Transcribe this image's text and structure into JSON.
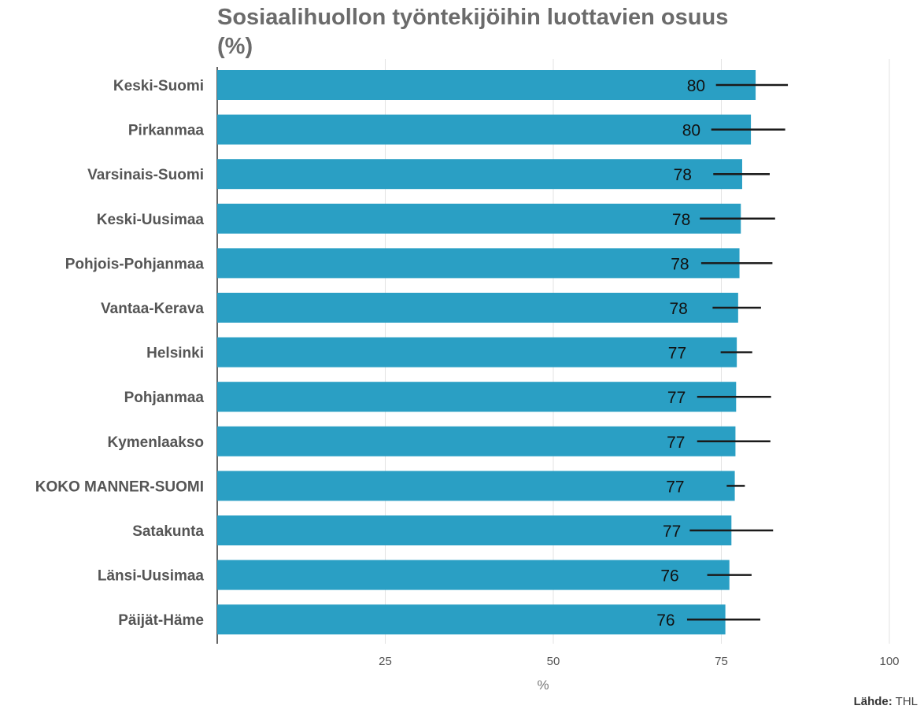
{
  "chart_data": {
    "type": "bar",
    "orientation": "horizontal",
    "title": "Sosiaalihuollon työntekijöihin luottavien osuus (%)",
    "xlabel": "%",
    "ylabel": "",
    "xlim": [
      0,
      100
    ],
    "xticks": [
      25,
      50,
      75,
      100
    ],
    "grid": true,
    "bar_color": "#2a9fc4",
    "error_color": "#1a1a1a",
    "categories": [
      "Keski-Suomi",
      "Pirkanmaa",
      "Varsinais-Suomi",
      "Keski-Uusimaa",
      "Pohjois-Pohjanmaa",
      "Vantaa-Kerava",
      "Helsinki",
      "Pohjanmaa",
      "Kymenlaakso",
      "KOKO MANNER-SUOMI",
      "Satakunta",
      "Länsi-Uusimaa",
      "Päijät-Häme"
    ],
    "values": [
      80,
      80,
      78,
      78,
      78,
      78,
      77,
      77,
      77,
      77,
      77,
      76,
      76
    ],
    "data_labels": [
      "80",
      "80",
      "78",
      "78",
      "78",
      "78",
      "77",
      "77",
      "77",
      "77",
      "77",
      "76",
      "76"
    ],
    "precise_values": [
      80.1,
      79.4,
      78.1,
      77.9,
      77.7,
      77.5,
      77.3,
      77.2,
      77.1,
      77.0,
      76.5,
      76.2,
      75.6
    ],
    "error_low": [
      74.2,
      73.5,
      73.8,
      71.8,
      72.0,
      73.7,
      74.9,
      71.4,
      71.4,
      75.8,
      70.3,
      72.9,
      69.9
    ],
    "error_high": [
      84.9,
      84.5,
      82.2,
      83.0,
      82.6,
      80.9,
      79.6,
      82.4,
      82.3,
      78.5,
      82.7,
      79.5,
      80.8
    ]
  },
  "source": {
    "label": "Lähde:",
    "value": "THL"
  }
}
